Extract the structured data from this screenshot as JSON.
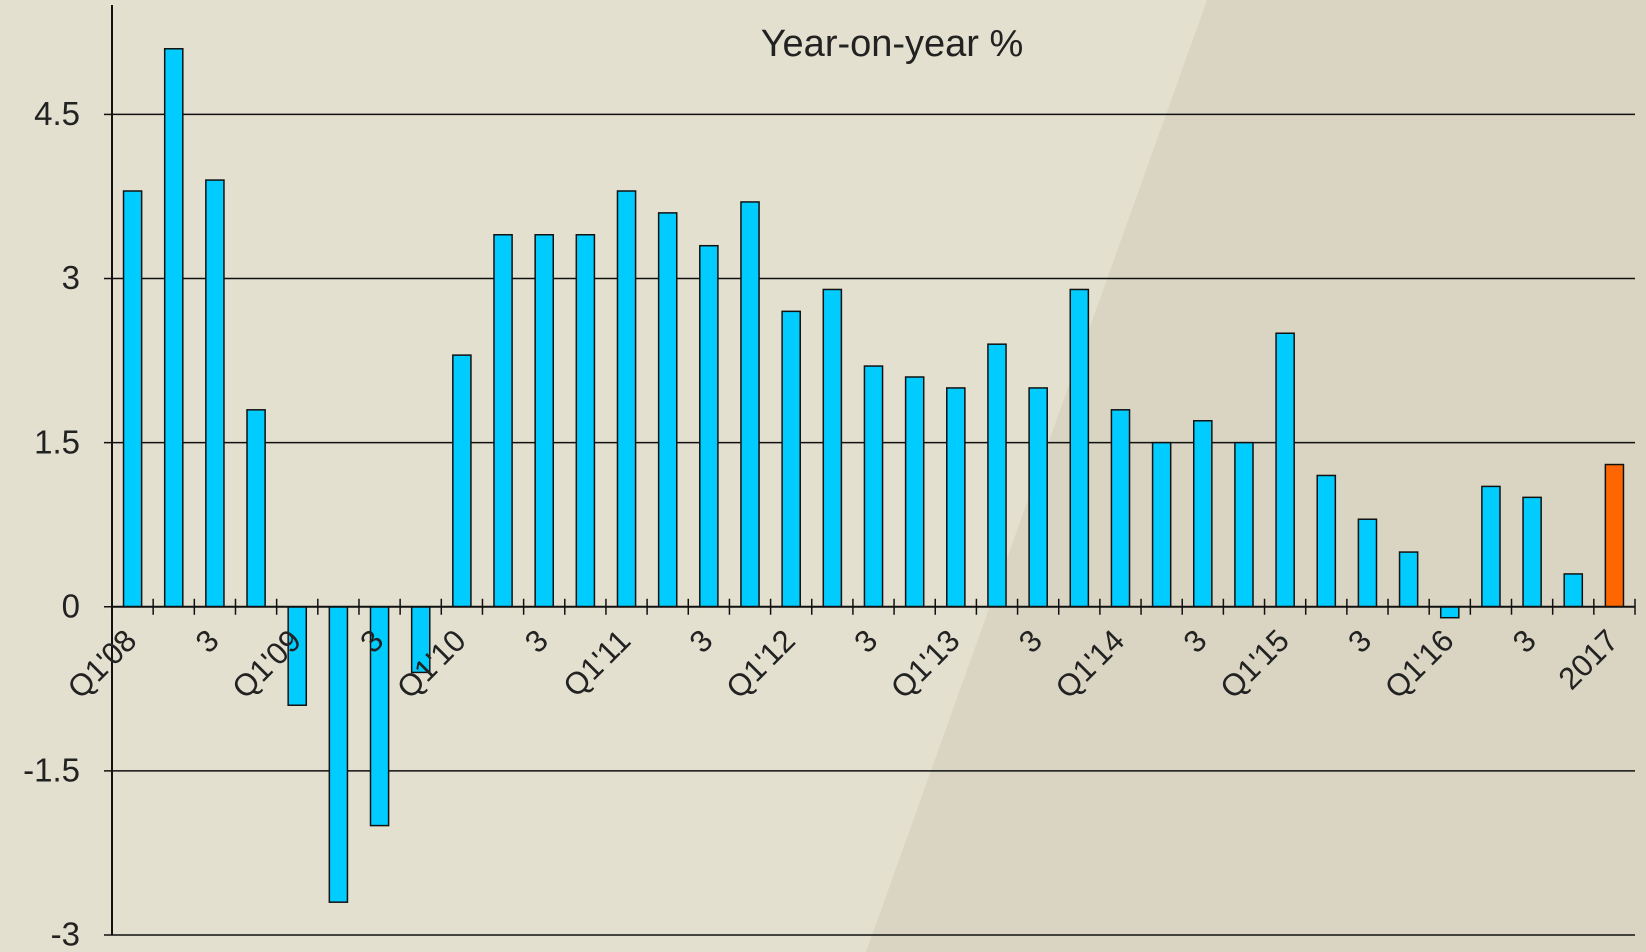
{
  "chart_data": {
    "type": "bar",
    "title": "Year-on-year %",
    "categories": [
      "Q1'08",
      null,
      "3",
      null,
      "Q1'09",
      null,
      "3",
      null,
      "Q1'10",
      null,
      "3",
      null,
      "Q1'11",
      null,
      "3",
      null,
      "Q1'12",
      null,
      "3",
      null,
      "Q1'13",
      null,
      "3",
      null,
      "Q1'14",
      null,
      "3",
      null,
      "Q1'15",
      null,
      "3",
      null,
      "Q1'16",
      null,
      "3",
      null,
      "2017"
    ],
    "values": [
      3.8,
      5.1,
      3.9,
      1.8,
      -0.9,
      -2.7,
      -2.0,
      -0.6,
      2.3,
      3.4,
      3.4,
      3.4,
      3.8,
      3.6,
      3.3,
      3.7,
      2.7,
      2.9,
      2.2,
      2.1,
      2.0,
      2.4,
      2.0,
      2.9,
      1.8,
      1.5,
      1.7,
      1.5,
      2.5,
      1.2,
      0.8,
      0.5,
      -0.1,
      1.1,
      1.0,
      0.3,
      1.3
    ],
    "colors": [
      "#00ccff",
      "#00ccff",
      "#00ccff",
      "#00ccff",
      "#00ccff",
      "#00ccff",
      "#00ccff",
      "#00ccff",
      "#00ccff",
      "#00ccff",
      "#00ccff",
      "#00ccff",
      "#00ccff",
      "#00ccff",
      "#00ccff",
      "#00ccff",
      "#00ccff",
      "#00ccff",
      "#00ccff",
      "#00ccff",
      "#00ccff",
      "#00ccff",
      "#00ccff",
      "#00ccff",
      "#00ccff",
      "#00ccff",
      "#00ccff",
      "#00ccff",
      "#00ccff",
      "#00ccff",
      "#00ccff",
      "#00ccff",
      "#00ccff",
      "#00ccff",
      "#00ccff",
      "#00ccff",
      "#ff6600"
    ],
    "ylim": [
      -3,
      5.5
    ],
    "yticks": [
      -3,
      -1.5,
      0,
      1.5,
      3,
      4.5
    ],
    "grid": true
  }
}
